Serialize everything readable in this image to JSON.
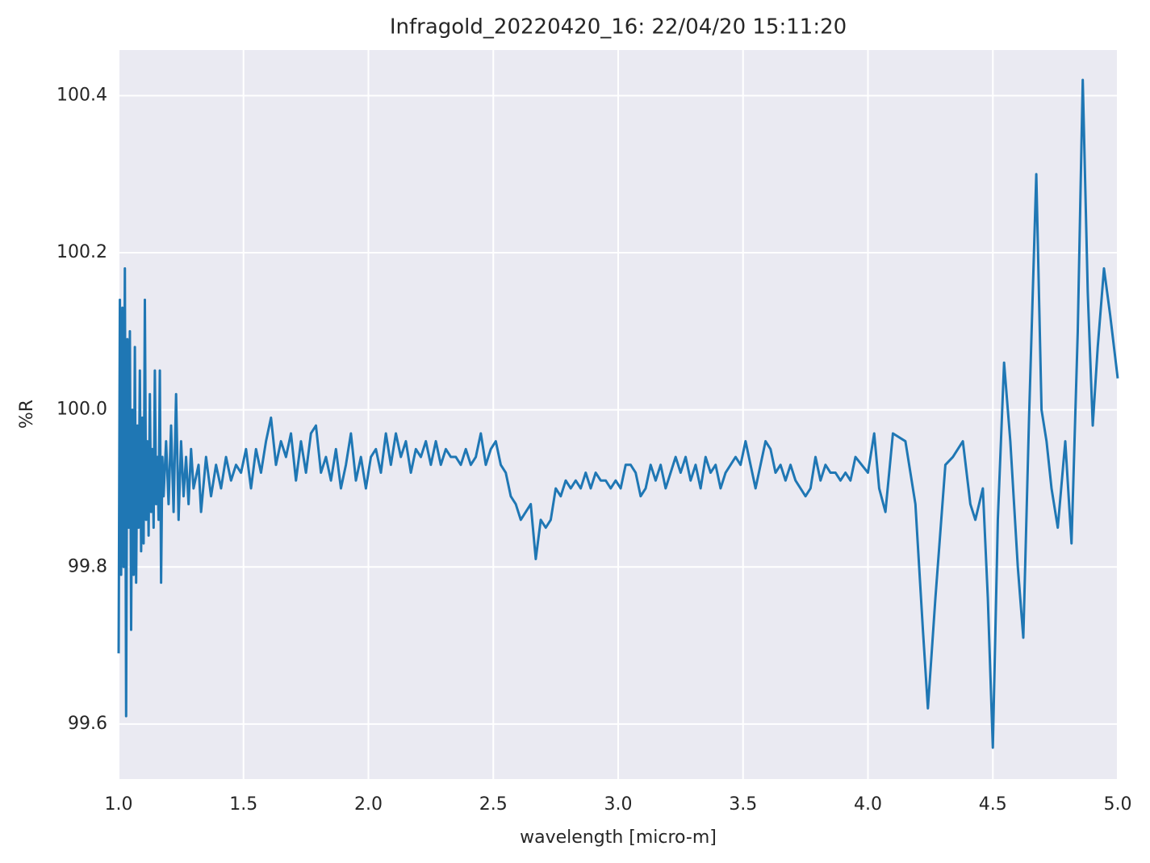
{
  "chart_data": {
    "type": "line",
    "title": "Infragold_20220420_16:  22/04/20 15:11:20",
    "x_label": "wavelength [micro-m]",
    "y_label": "%R",
    "xlim": [
      1.0,
      5.0
    ],
    "ylim": [
      99.53,
      100.458
    ],
    "xticks": [
      {
        "value": 1.0,
        "label": "1.0"
      },
      1.5,
      {
        "value": 2.0,
        "label": "2.0"
      },
      2.5,
      {
        "value": 3.0,
        "label": "3.0"
      },
      3.5,
      {
        "value": 4.0,
        "label": "4.0"
      },
      4.5,
      {
        "value": 5.0,
        "label": "5.0"
      }
    ],
    "yticks": [
      99.6,
      99.8,
      {
        "value": 100.0,
        "label": "100.0"
      },
      100.2,
      100.4
    ],
    "grid": true,
    "background": "#eaeaf2",
    "x": [
      1.0,
      1.005,
      1.01,
      1.015,
      1.02,
      1.025,
      1.03,
      1.035,
      1.04,
      1.045,
      1.05,
      1.055,
      1.06,
      1.065,
      1.07,
      1.075,
      1.08,
      1.085,
      1.09,
      1.095,
      1.1,
      1.105,
      1.11,
      1.115,
      1.12,
      1.125,
      1.13,
      1.135,
      1.14,
      1.145,
      1.15,
      1.155,
      1.16,
      1.165,
      1.17,
      1.175,
      1.18,
      1.19,
      1.2,
      1.21,
      1.22,
      1.23,
      1.24,
      1.25,
      1.26,
      1.27,
      1.28,
      1.29,
      1.3,
      1.32,
      1.33,
      1.35,
      1.37,
      1.39,
      1.41,
      1.43,
      1.45,
      1.47,
      1.49,
      1.51,
      1.53,
      1.55,
      1.57,
      1.59,
      1.61,
      1.63,
      1.65,
      1.67,
      1.69,
      1.71,
      1.73,
      1.75,
      1.77,
      1.79,
      1.81,
      1.83,
      1.85,
      1.87,
      1.89,
      1.91,
      1.93,
      1.95,
      1.97,
      1.99,
      2.01,
      2.03,
      2.05,
      2.07,
      2.09,
      2.11,
      2.13,
      2.15,
      2.17,
      2.19,
      2.21,
      2.23,
      2.25,
      2.27,
      2.29,
      2.31,
      2.33,
      2.35,
      2.37,
      2.39,
      2.41,
      2.43,
      2.45,
      2.47,
      2.49,
      2.51,
      2.53,
      2.55,
      2.57,
      2.59,
      2.61,
      2.63,
      2.65,
      2.67,
      2.69,
      2.71,
      2.73,
      2.75,
      2.77,
      2.79,
      2.81,
      2.83,
      2.85,
      2.87,
      2.89,
      2.91,
      2.93,
      2.95,
      2.97,
      2.99,
      3.01,
      3.03,
      3.05,
      3.07,
      3.09,
      3.11,
      3.13,
      3.15,
      3.17,
      3.19,
      3.21,
      3.23,
      3.25,
      3.27,
      3.29,
      3.31,
      3.33,
      3.35,
      3.37,
      3.39,
      3.41,
      3.43,
      3.45,
      3.47,
      3.49,
      3.51,
      3.53,
      3.55,
      3.57,
      3.59,
      3.61,
      3.63,
      3.65,
      3.67,
      3.69,
      3.71,
      3.73,
      3.75,
      3.77,
      3.79,
      3.81,
      3.83,
      3.85,
      3.87,
      3.89,
      3.91,
      3.93,
      3.95,
      4.0,
      4.025,
      4.045,
      4.07,
      4.1,
      4.15,
      4.19,
      4.22,
      4.24,
      4.27,
      4.31,
      4.34,
      4.38,
      4.41,
      4.43,
      4.46,
      4.48,
      4.5,
      4.52,
      4.545,
      4.57,
      4.6,
      4.622,
      4.645,
      4.674,
      4.695,
      4.715,
      4.735,
      4.76,
      4.79,
      4.815,
      4.84,
      4.86,
      4.88,
      4.9,
      4.92,
      4.945,
      4.97,
      5.0
    ],
    "series": [
      {
        "name": "%R",
        "color": "#1f77b4",
        "values": [
          99.69,
          100.14,
          99.79,
          100.13,
          99.8,
          100.18,
          99.61,
          100.09,
          99.85,
          100.1,
          99.72,
          100.0,
          99.79,
          100.08,
          99.78,
          99.98,
          99.85,
          100.05,
          99.82,
          99.99,
          99.83,
          100.14,
          99.86,
          99.96,
          99.84,
          100.02,
          99.87,
          99.95,
          99.85,
          100.05,
          99.88,
          99.94,
          99.86,
          100.05,
          99.78,
          99.94,
          99.89,
          99.96,
          99.88,
          99.98,
          99.87,
          100.02,
          99.86,
          99.96,
          99.89,
          99.94,
          99.88,
          99.95,
          99.9,
          99.93,
          99.87,
          99.94,
          99.89,
          99.93,
          99.9,
          99.94,
          99.91,
          99.93,
          99.92,
          99.95,
          99.9,
          99.95,
          99.92,
          99.96,
          99.99,
          99.93,
          99.96,
          99.94,
          99.97,
          99.91,
          99.96,
          99.92,
          99.97,
          99.98,
          99.92,
          99.94,
          99.91,
          99.95,
          99.9,
          99.93,
          99.97,
          99.91,
          99.94,
          99.9,
          99.94,
          99.95,
          99.92,
          99.97,
          99.93,
          99.97,
          99.94,
          99.96,
          99.92,
          99.95,
          99.94,
          99.96,
          99.93,
          99.96,
          99.93,
          99.95,
          99.94,
          99.94,
          99.93,
          99.95,
          99.93,
          99.94,
          99.97,
          99.93,
          99.95,
          99.96,
          99.93,
          99.92,
          99.89,
          99.88,
          99.86,
          99.87,
          99.88,
          99.81,
          99.86,
          99.85,
          99.86,
          99.9,
          99.89,
          99.91,
          99.9,
          99.91,
          99.9,
          99.92,
          99.9,
          99.92,
          99.91,
          99.91,
          99.9,
          99.91,
          99.9,
          99.93,
          99.93,
          99.92,
          99.89,
          99.9,
          99.93,
          99.91,
          99.93,
          99.9,
          99.92,
          99.94,
          99.92,
          99.94,
          99.91,
          99.93,
          99.9,
          99.94,
          99.92,
          99.93,
          99.9,
          99.92,
          99.93,
          99.94,
          99.93,
          99.96,
          99.93,
          99.9,
          99.93,
          99.96,
          99.95,
          99.92,
          99.93,
          99.91,
          99.93,
          99.91,
          99.9,
          99.89,
          99.9,
          99.94,
          99.91,
          99.93,
          99.92,
          99.92,
          99.91,
          99.92,
          99.91,
          99.94,
          99.92,
          99.97,
          99.9,
          99.87,
          99.97,
          99.96,
          99.88,
          99.72,
          99.62,
          99.76,
          99.93,
          99.94,
          99.96,
          99.88,
          99.86,
          99.9,
          99.76,
          99.57,
          99.86,
          100.06,
          99.96,
          99.8,
          99.71,
          99.99,
          100.3,
          100.0,
          99.96,
          99.9,
          99.85,
          99.96,
          99.83,
          100.1,
          100.42,
          100.15,
          99.98,
          100.08,
          100.18,
          100.12,
          100.04
        ]
      }
    ]
  }
}
